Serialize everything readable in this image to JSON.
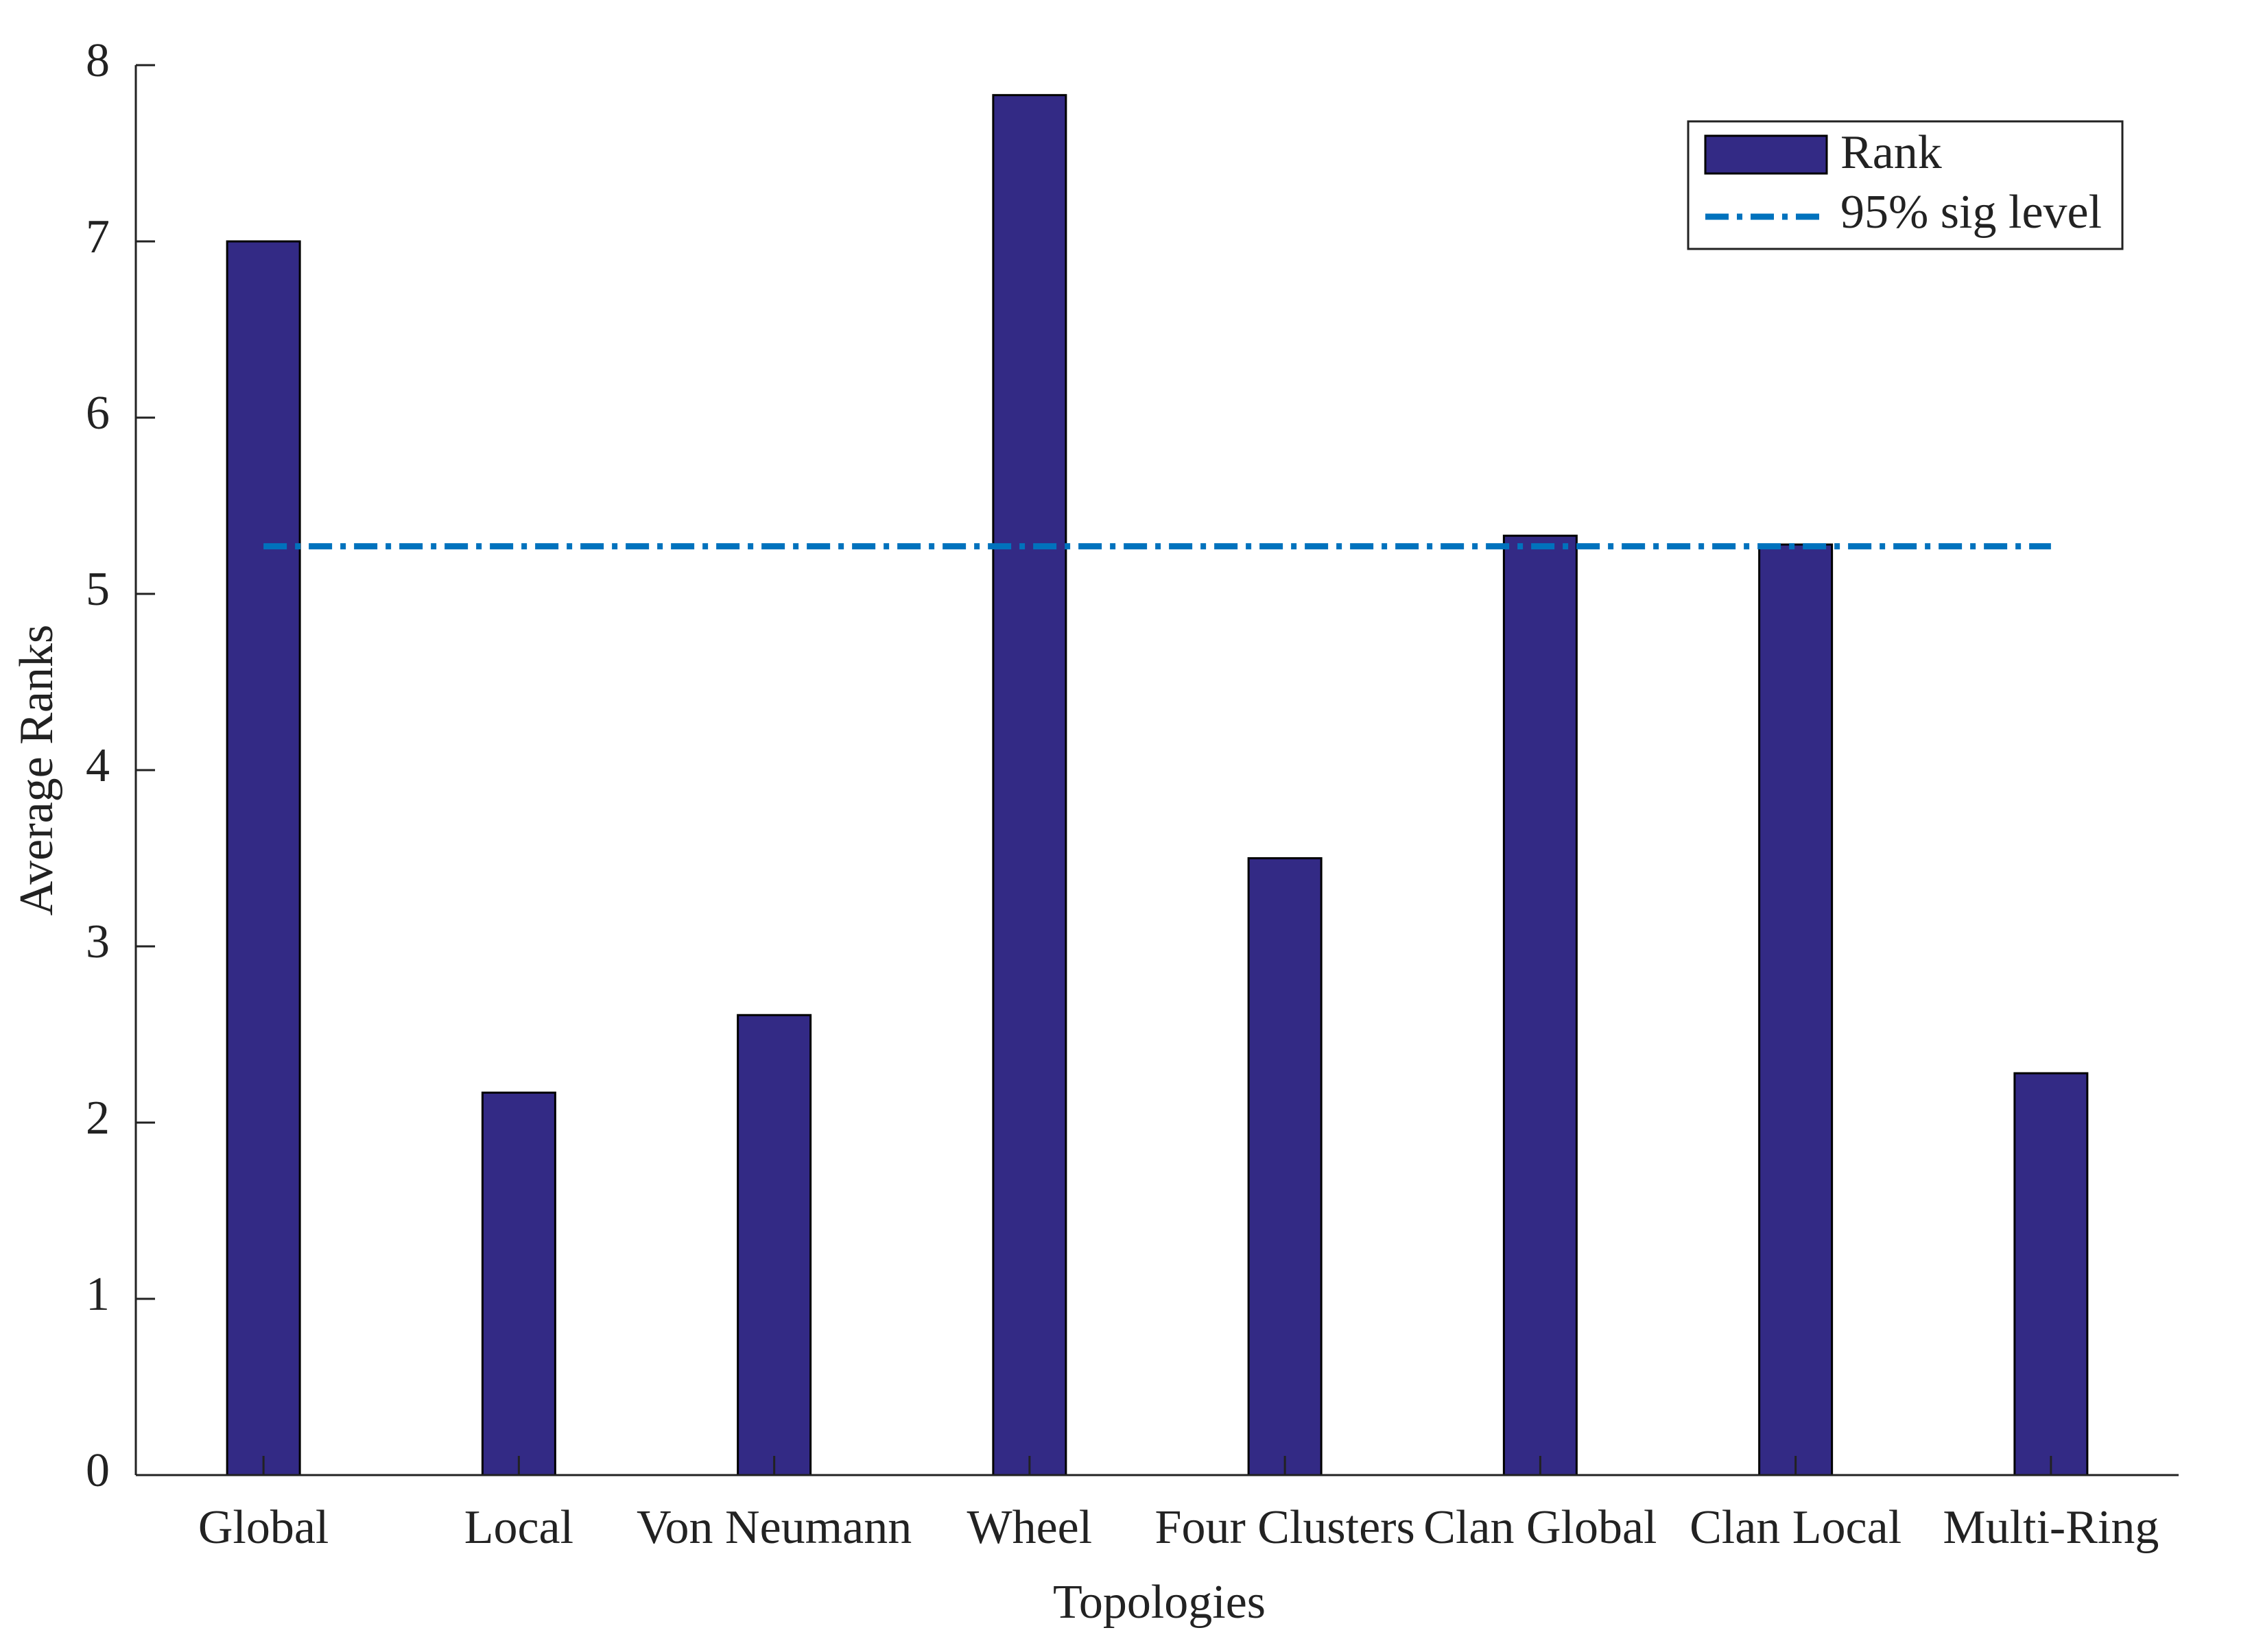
{
  "chart_data": {
    "type": "bar",
    "x_label": "Topologies",
    "y_label": "Average Ranks",
    "categories": [
      "Global",
      "Local",
      "Von Neumann",
      "Wheel",
      "Four Clusters",
      "Clan Global",
      "Clan Local",
      "Multi-Ring"
    ],
    "series": [
      {
        "name": "Rank",
        "color": "#332a85",
        "values": [
          7.0,
          2.17,
          2.61,
          7.83,
          3.5,
          5.33,
          5.28,
          2.28
        ]
      }
    ],
    "reference_line": {
      "name": "95% sig level",
      "value": 5.27,
      "color": "#0072bd"
    },
    "ylim": [
      0,
      8
    ],
    "yticks": [
      0,
      1,
      2,
      3,
      4,
      5,
      6,
      7,
      8
    ],
    "legend": "top-right"
  }
}
